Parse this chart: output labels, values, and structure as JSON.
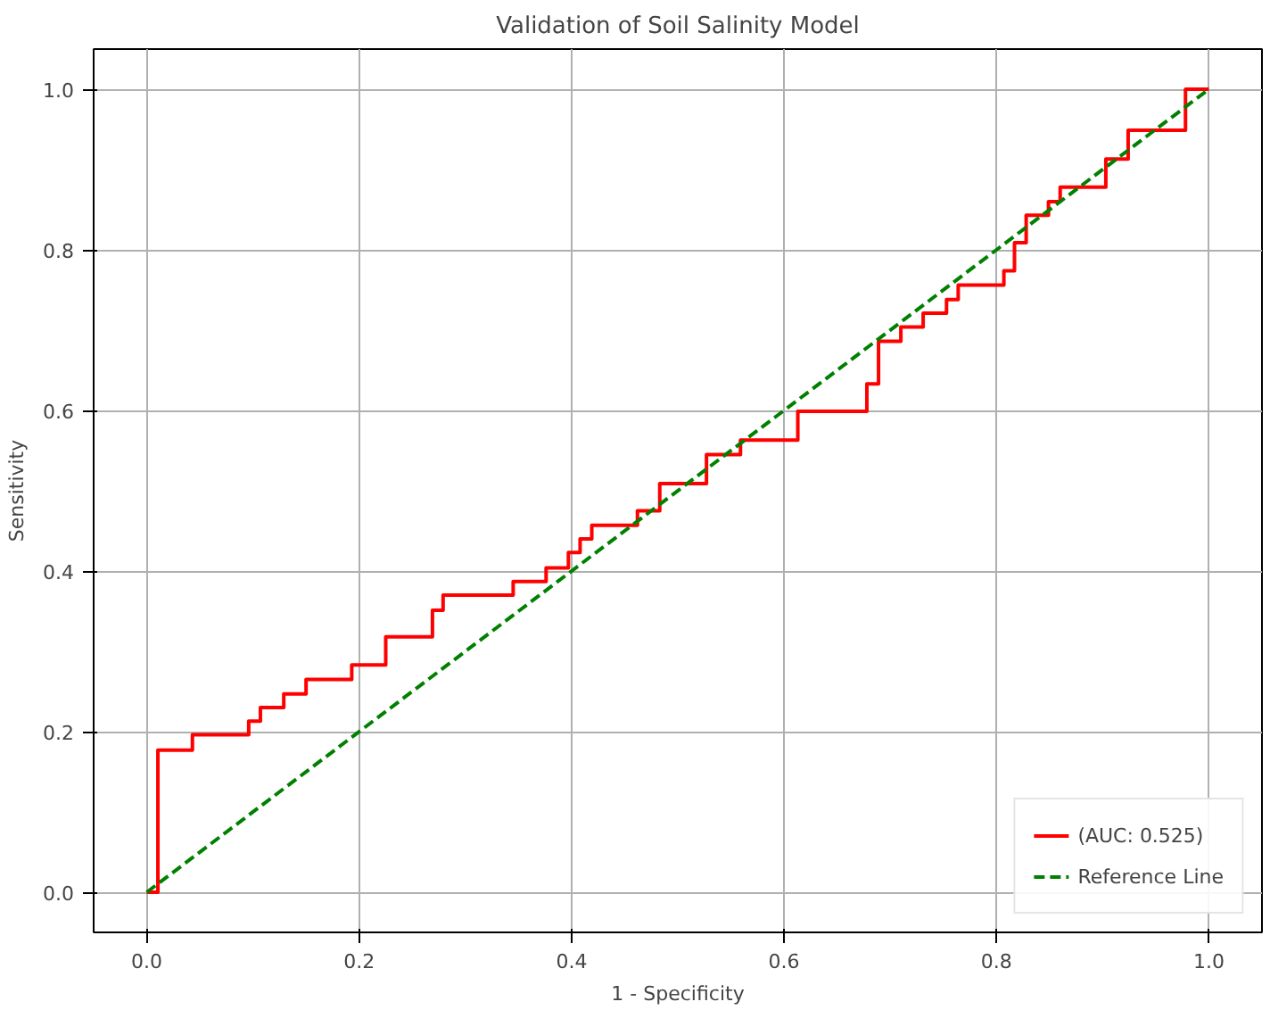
{
  "chart_data": {
    "type": "step",
    "title": "Validation of Soil Salinity Model",
    "xlabel": "1 - Specificity",
    "ylabel": "Sensitivity",
    "series": [
      {
        "name": "(AUC: 0.525)",
        "color": "#ff0000",
        "line_style": "solid",
        "x": [
          0,
          0.0105,
          0.043,
          0.096,
          0.107,
          0.129,
          0.15,
          0.193,
          0.225,
          0.269,
          0.279,
          0.345,
          0.376,
          0.397,
          0.408,
          0.419,
          0.462,
          0.483,
          0.527,
          0.559,
          0.613,
          0.678,
          0.689,
          0.71,
          0.731,
          0.753,
          0.764,
          0.807,
          0.817,
          0.828,
          0.849,
          0.86,
          0.903,
          0.924,
          0.978,
          1.0
        ],
        "values": [
          0,
          0.177,
          0.196,
          0.213,
          0.23,
          0.247,
          0.265,
          0.283,
          0.318,
          0.351,
          0.37,
          0.387,
          0.404,
          0.423,
          0.44,
          0.457,
          0.475,
          0.509,
          0.545,
          0.563,
          0.599,
          0.633,
          0.686,
          0.704,
          0.721,
          0.738,
          0.756,
          0.774,
          0.809,
          0.843,
          0.86,
          0.878,
          0.913,
          0.949,
          1.0,
          1.0
        ]
      },
      {
        "name": "Reference Line",
        "color": "#008000",
        "type": "line",
        "line_style": "dashed",
        "x": [
          0,
          1
        ],
        "values": [
          0,
          1
        ]
      }
    ],
    "xlim": [
      -0.05,
      1.05
    ],
    "ylim": [
      -0.05,
      1.05
    ],
    "xticks": [
      {
        "value": 0,
        "label": "0.0"
      },
      0.2,
      0.4,
      0.6,
      0.8,
      {
        "value": 1,
        "label": "1.0"
      }
    ],
    "yticks": [
      {
        "value": 0,
        "label": "0.0"
      },
      0.2,
      0.4,
      0.6,
      0.8,
      {
        "value": 1,
        "label": "1.0"
      }
    ],
    "grid": true,
    "legend": "bottom right"
  }
}
